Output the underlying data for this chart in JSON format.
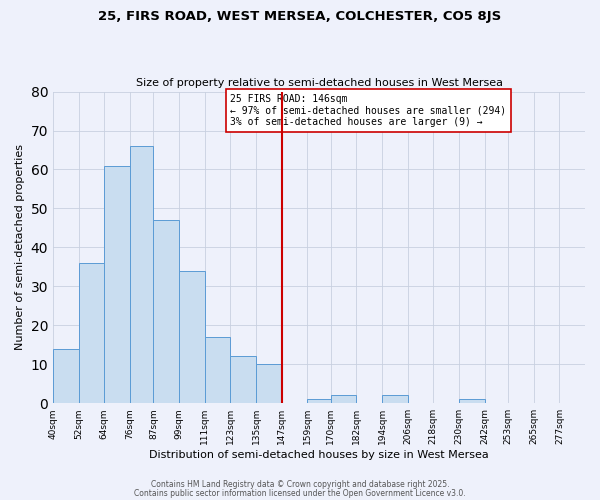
{
  "title": "25, FIRS ROAD, WEST MERSEA, COLCHESTER, CO5 8JS",
  "subtitle": "Size of property relative to semi-detached houses in West Mersea",
  "xlabel": "Distribution of semi-detached houses by size in West Mersea",
  "ylabel": "Number of semi-detached properties",
  "bar_labels": [
    "40sqm",
    "52sqm",
    "64sqm",
    "76sqm",
    "87sqm",
    "99sqm",
    "111sqm",
    "123sqm",
    "135sqm",
    "147sqm",
    "159sqm",
    "170sqm",
    "182sqm",
    "194sqm",
    "206sqm",
    "218sqm",
    "230sqm",
    "242sqm",
    "253sqm",
    "265sqm",
    "277sqm"
  ],
  "bar_values": [
    14,
    36,
    61,
    66,
    47,
    34,
    17,
    12,
    10,
    0,
    1,
    2,
    0,
    2,
    0,
    0,
    1,
    0,
    0,
    0,
    0
  ],
  "bar_edges": [
    40,
    52,
    64,
    76,
    87,
    99,
    111,
    123,
    135,
    147,
    159,
    170,
    182,
    194,
    206,
    218,
    230,
    242,
    253,
    265,
    277,
    289
  ],
  "vline_x": 147,
  "vline_color": "#cc0000",
  "bar_fill_color": "#c9ddf0",
  "bar_edge_color": "#5b9bd5",
  "annotation_text": "25 FIRS ROAD: 146sqm\n← 97% of semi-detached houses are smaller (294)\n3% of semi-detached houses are larger (9) →",
  "ylim": [
    0,
    80
  ],
  "yticks": [
    0,
    10,
    20,
    30,
    40,
    50,
    60,
    70,
    80
  ],
  "grid_color": "#c8d0e0",
  "background_color": "#eef1fb",
  "footer_line1": "Contains HM Land Registry data © Crown copyright and database right 2025.",
  "footer_line2": "Contains public sector information licensed under the Open Government Licence v3.0."
}
